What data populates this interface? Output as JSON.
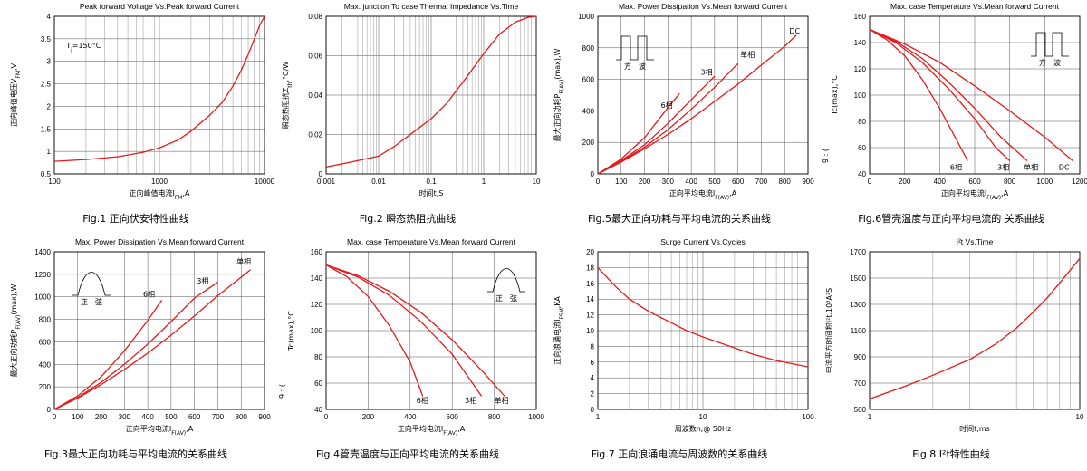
{
  "colors": {
    "curve": "#e41a1c",
    "grid": "#555555",
    "text": "#000000"
  },
  "chart_data": [
    {
      "id": "fig1",
      "type": "line",
      "log_x": true,
      "title": "Peak forward Voltage Vs.Peak forward Current",
      "xlabel": "正向峰值电流I",
      "xlabel_sub": "FM",
      "xlabel_tail": ",A",
      "ylabel": "正向峰值电压V",
      "ylabel_sub": "FM",
      "ylabel_tail": ",V",
      "caption": "Fig.1 正向伏安特性曲线",
      "xlim": [
        100,
        10000
      ],
      "ylim": [
        0.5,
        4
      ],
      "xticks": [
        100,
        1000,
        10000
      ],
      "xtick_labels": [
        "100",
        "1000",
        "10000"
      ],
      "yticks": [
        0.5,
        1,
        1.5,
        2,
        2.5,
        3,
        3.5,
        4
      ],
      "ytick_labels": [
        "0.5",
        "1",
        "1.5",
        "2",
        "2.5",
        "3",
        "3.5",
        "4"
      ],
      "annotations": [
        {
          "text": "T",
          "sub": "j",
          "tail": "=150°C",
          "x": 130,
          "y": 3.3
        }
      ],
      "series": [
        {
          "x": [
            100,
            200,
            400,
            700,
            1000,
            1500,
            2000,
            3000,
            4000,
            5000,
            6000,
            7000,
            8000,
            9000,
            10000
          ],
          "y": [
            0.78,
            0.82,
            0.88,
            0.98,
            1.08,
            1.25,
            1.45,
            1.8,
            2.1,
            2.45,
            2.8,
            3.15,
            3.5,
            3.8,
            4.0
          ]
        }
      ]
    },
    {
      "id": "fig2",
      "type": "line",
      "log_x": true,
      "title": "Max. junction To case Thermal Impedance Vs.Time",
      "xlabel": "时间t,S",
      "ylabel": "瞬态热阻抗Z",
      "ylabel_sub": "th",
      "ylabel_tail": ",°C/W",
      "caption": "Fig.2 瞬态热阻抗曲线",
      "xlim": [
        0.001,
        10
      ],
      "ylim": [
        0,
        0.08
      ],
      "xticks": [
        0.001,
        0.01,
        0.1,
        1,
        10
      ],
      "xtick_labels": [
        "0.001",
        "0.01",
        "0.1",
        "1",
        "10"
      ],
      "yticks": [
        0,
        0.02,
        0.04,
        0.06,
        0.08
      ],
      "ytick_labels": [
        "0",
        "0.02",
        "0.04",
        "0.06",
        "0.08"
      ],
      "annotations": [],
      "series": [
        {
          "x": [
            0.001,
            0.003,
            0.01,
            0.02,
            0.05,
            0.1,
            0.2,
            0.5,
            1,
            2,
            4,
            7,
            10
          ],
          "y": [
            0.0035,
            0.006,
            0.009,
            0.014,
            0.022,
            0.028,
            0.036,
            0.05,
            0.061,
            0.071,
            0.077,
            0.0795,
            0.08
          ]
        }
      ]
    },
    {
      "id": "fig5",
      "type": "line",
      "log_x": false,
      "title": "Max. Power Dissipation Vs.Mean forward Current",
      "xlabel": "正向平均电流I",
      "xlabel_sub": "F(AV)",
      "xlabel_tail": ",A",
      "ylabel": "最大正向功耗P",
      "ylabel_sub": "F(AV)",
      "ylabel_tail": "(max),W",
      "caption": "Fig.5最大正向功耗与平均电流的关系曲线",
      "xlim": [
        0,
        900
      ],
      "ylim": [
        0,
        1000
      ],
      "xticks": [
        0,
        100,
        200,
        300,
        400,
        500,
        600,
        700,
        800,
        900
      ],
      "xtick_labels": [
        "0",
        "100",
        "200",
        "300",
        "400",
        "500",
        "600",
        "700",
        "800",
        "900"
      ],
      "yticks": [
        0,
        200,
        400,
        600,
        800,
        1000
      ],
      "ytick_labels": [
        "0",
        "200",
        "400",
        "600",
        "800",
        "1000"
      ],
      "icon": "square-wave",
      "icon_label": "方　波",
      "annotations": [
        {
          "text": "6相",
          "x": 270,
          "y": 420
        },
        {
          "text": "3相",
          "x": 440,
          "y": 630
        },
        {
          "text": "单相",
          "x": 610,
          "y": 740
        },
        {
          "text": "DC",
          "x": 820,
          "y": 890
        }
      ],
      "series": [
        {
          "name": "6相",
          "x": [
            0,
            100,
            200,
            300,
            350
          ],
          "y": [
            0,
            95,
            230,
            420,
            510
          ]
        },
        {
          "name": "3相",
          "x": [
            0,
            100,
            200,
            300,
            400,
            500
          ],
          "y": [
            0,
            85,
            185,
            320,
            470,
            620
          ]
        },
        {
          "name": "单相",
          "x": [
            0,
            100,
            200,
            300,
            400,
            500,
            600
          ],
          "y": [
            0,
            80,
            170,
            280,
            410,
            550,
            700
          ]
        },
        {
          "name": "DC",
          "x": [
            0,
            100,
            200,
            300,
            400,
            500,
            600,
            700,
            800,
            850
          ],
          "y": [
            0,
            75,
            160,
            250,
            350,
            460,
            570,
            690,
            810,
            880
          ]
        }
      ]
    },
    {
      "id": "fig6",
      "type": "line",
      "log_x": false,
      "title": "Max. case Temperature Vs.Mean forward Current",
      "xlabel": "正向平均电流I",
      "xlabel_sub": "F(AV)",
      "xlabel_tail": ",A",
      "ylabel": "Tc(max),°C",
      "ylabel_extra": "9 : (",
      "caption": "Fig.6管壳温度与正向平均电流的 关系曲线",
      "xlim": [
        0,
        1200
      ],
      "ylim": [
        40,
        160
      ],
      "xticks": [
        0,
        200,
        400,
        600,
        800,
        1000,
        1200
      ],
      "xtick_labels": [
        "0",
        "200",
        "400",
        "600",
        "800",
        "1000",
        "1200"
      ],
      "yticks": [
        40,
        60,
        80,
        100,
        120,
        140,
        160
      ],
      "ytick_labels": [
        "40",
        "60",
        "80",
        "100",
        "120",
        "140",
        "160"
      ],
      "icon": "square-wave",
      "icon_label": "方　波",
      "annotations": [
        {
          "text": "6相",
          "x": 460,
          "y": 43
        },
        {
          "text": "3相",
          "x": 730,
          "y": 43
        },
        {
          "text": "单相",
          "x": 880,
          "y": 43
        },
        {
          "text": "DC",
          "x": 1080,
          "y": 43
        }
      ],
      "series": [
        {
          "name": "6相",
          "x": [
            0,
            100,
            200,
            300,
            400,
            500,
            560
          ],
          "y": [
            150,
            142,
            130,
            112,
            90,
            65,
            50
          ]
        },
        {
          "name": "3相",
          "x": [
            0,
            150,
            300,
            450,
            600,
            720,
            800
          ],
          "y": [
            150,
            140,
            125,
            105,
            82,
            60,
            50
          ]
        },
        {
          "name": "单相",
          "x": [
            0,
            150,
            300,
            450,
            600,
            750,
            900
          ],
          "y": [
            150,
            141,
            128,
            110,
            90,
            68,
            50
          ]
        },
        {
          "name": "DC",
          "x": [
            0,
            200,
            400,
            600,
            800,
            1000,
            1160
          ],
          "y": [
            150,
            139,
            125,
            107,
            88,
            68,
            50
          ]
        }
      ]
    },
    {
      "id": "fig3",
      "type": "line",
      "log_x": false,
      "title": "Max. Power Dissipation Vs.Mean forward Current",
      "xlabel": "正向平均电流I",
      "xlabel_sub": "F(AV)",
      "xlabel_tail": ",A",
      "ylabel": "最大正向功耗P",
      "ylabel_sub": "F(AV)",
      "ylabel_tail": "(max),W",
      "caption": "Fig.3最大正向功耗与平均电流的关系曲线",
      "xlim": [
        0,
        900
      ],
      "ylim": [
        0,
        1400
      ],
      "xticks": [
        0,
        100,
        200,
        300,
        400,
        500,
        600,
        700,
        800,
        900
      ],
      "xtick_labels": [
        "0",
        "100",
        "200",
        "300",
        "400",
        "500",
        "600",
        "700",
        "800",
        "900"
      ],
      "yticks": [
        0,
        200,
        400,
        600,
        800,
        1000,
        1200,
        1400
      ],
      "ytick_labels": [
        "0",
        "200",
        "400",
        "600",
        "800",
        "1000",
        "1200",
        "1400"
      ],
      "icon": "sine-half",
      "icon_label": "正　弦",
      "annotations": [
        {
          "text": "6相",
          "x": 380,
          "y": 1000
        },
        {
          "text": "3相",
          "x": 610,
          "y": 1120
        },
        {
          "text": "单相",
          "x": 780,
          "y": 1290
        }
      ],
      "series": [
        {
          "name": "6相",
          "x": [
            0,
            100,
            200,
            300,
            400,
            460
          ],
          "y": [
            0,
            120,
            290,
            520,
            790,
            970
          ]
        },
        {
          "name": "3相",
          "x": [
            0,
            100,
            200,
            300,
            400,
            500,
            600,
            700
          ],
          "y": [
            0,
            105,
            240,
            400,
            580,
            780,
            990,
            1130
          ]
        },
        {
          "name": "单相",
          "x": [
            0,
            100,
            200,
            300,
            400,
            500,
            600,
            700,
            840
          ],
          "y": [
            0,
            100,
            220,
            355,
            500,
            660,
            830,
            1010,
            1240
          ]
        }
      ]
    },
    {
      "id": "fig4",
      "type": "line",
      "log_x": false,
      "title": "Max. case Temperature Vs.Mean forward Current",
      "xlabel": "正向平均电流I",
      "xlabel_sub": "F(AV)",
      "xlabel_tail": ",A",
      "ylabel": "Tc(max),°C",
      "ylabel_extra": "9 : (",
      "caption": "Fig.4管壳温度与正向平均电流的关系曲线",
      "xlim": [
        0,
        1000
      ],
      "ylim": [
        40,
        160
      ],
      "xticks": [
        0,
        200,
        400,
        600,
        800,
        1000
      ],
      "xtick_labels": [
        "0",
        "200",
        "400",
        "600",
        "800",
        "1000"
      ],
      "yticks": [
        40,
        60,
        80,
        100,
        120,
        140,
        160
      ],
      "ytick_labels": [
        "40",
        "60",
        "80",
        "100",
        "120",
        "140",
        "160"
      ],
      "icon": "sine-half",
      "icon_label": "正　弦",
      "annotations": [
        {
          "text": "6相",
          "x": 430,
          "y": 45
        },
        {
          "text": "3相",
          "x": 660,
          "y": 45
        },
        {
          "text": "单相",
          "x": 800,
          "y": 45
        }
      ],
      "series": [
        {
          "name": "6相",
          "x": [
            0,
            100,
            200,
            300,
            400,
            460
          ],
          "y": [
            150,
            141,
            126,
            104,
            76,
            50
          ]
        },
        {
          "name": "3相",
          "x": [
            0,
            150,
            300,
            450,
            600,
            740
          ],
          "y": [
            150,
            141,
            127,
            107,
            82,
            50
          ]
        },
        {
          "name": "单相",
          "x": [
            0,
            150,
            300,
            450,
            600,
            750,
            850
          ],
          "y": [
            150,
            142,
            130,
            114,
            93,
            68,
            50
          ]
        }
      ]
    },
    {
      "id": "fig7",
      "type": "line",
      "log_x": true,
      "title": "Surge Current Vs.Cycles",
      "xlabel": "周波数n,@ 50Hz",
      "ylabel": "正向浪涌电流I",
      "ylabel_sub": "FSM",
      "ylabel_tail": ",KA",
      "caption": "Fig.7 正向浪涌电流与周波数的关系曲线",
      "xlim": [
        1,
        100
      ],
      "ylim": [
        0,
        20
      ],
      "xticks": [
        1,
        10,
        100
      ],
      "xtick_labels": [
        "1",
        "10",
        "100"
      ],
      "yticks": [
        0,
        2,
        4,
        6,
        8,
        10,
        12,
        14,
        16,
        18,
        20
      ],
      "ytick_labels": [
        "0",
        "2",
        "4",
        "6",
        "8",
        "10",
        "12",
        "14",
        "16",
        "18",
        "20"
      ],
      "annotations": [],
      "series": [
        {
          "x": [
            1,
            1.5,
            2,
            3,
            5,
            7,
            10,
            20,
            30,
            50,
            70,
            100
          ],
          "y": [
            18,
            15.5,
            14,
            12.5,
            11,
            10,
            9.2,
            7.8,
            7,
            6.2,
            5.8,
            5.4
          ]
        }
      ]
    },
    {
      "id": "fig8",
      "type": "line",
      "log_x": true,
      "title": "I²t Vs.Time",
      "xlabel": "时间t,ms",
      "ylabel": "电流平方时间积I²t,10³A²S",
      "caption": "Fig.8 I²t特性曲线",
      "xlim": [
        1,
        10
      ],
      "ylim": [
        500,
        1700
      ],
      "xticks": [
        1,
        10
      ],
      "xtick_labels": [
        "1",
        "10"
      ],
      "yticks": [
        500,
        700,
        900,
        1100,
        1300,
        1500,
        1700
      ],
      "ytick_labels": [
        "500",
        "700",
        "900",
        "1100",
        "1300",
        "1500",
        "1700"
      ],
      "annotations": [],
      "series": [
        {
          "x": [
            1,
            1.5,
            2,
            3,
            4,
            5,
            6,
            7,
            8,
            9,
            10
          ],
          "y": [
            580,
            680,
            760,
            880,
            1000,
            1120,
            1240,
            1350,
            1460,
            1560,
            1650
          ]
        }
      ]
    }
  ]
}
